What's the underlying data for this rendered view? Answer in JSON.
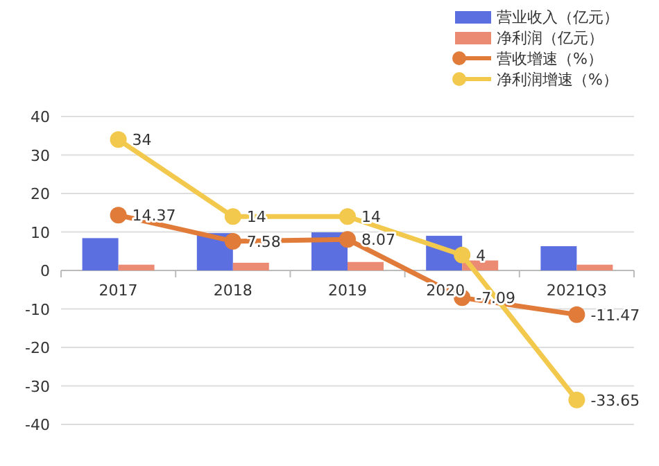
{
  "chart_data": {
    "type": "bar",
    "categories": [
      "2017",
      "2018",
      "2019",
      "2020",
      "2021Q3"
    ],
    "ylim": [
      -40,
      40
    ],
    "yticks": [
      -40,
      -30,
      -20,
      -10,
      0,
      10,
      20,
      30,
      40
    ],
    "grid": "y",
    "legend": "top right",
    "marker": "circle",
    "series": [
      {
        "name": "营业收入（亿元）",
        "color": "#5b6fe0",
        "values": [
          8.4,
          9.7,
          9.9,
          9.0,
          6.3
        ]
      },
      {
        "name": "净利润（亿元）",
        "color": "#ec8b74",
        "values": [
          1.5,
          2.0,
          2.2,
          2.6,
          1.5
        ]
      },
      {
        "name": "营收增速（%）",
        "type": "line",
        "color": "#e07b39",
        "values": [
          14.37,
          7.58,
          8.07,
          -7.09,
          -11.47
        ],
        "value_labels": [
          "14.37",
          "7.58",
          "8.07",
          "-7.09",
          "-11.47"
        ]
      },
      {
        "name": "净利润增速（%）",
        "type": "line",
        "color": "#f2c94c",
        "values": [
          34,
          14,
          14,
          4,
          -33.65
        ],
        "value_labels": [
          "34",
          "14",
          "14",
          "4",
          "-33.65"
        ]
      }
    ]
  }
}
